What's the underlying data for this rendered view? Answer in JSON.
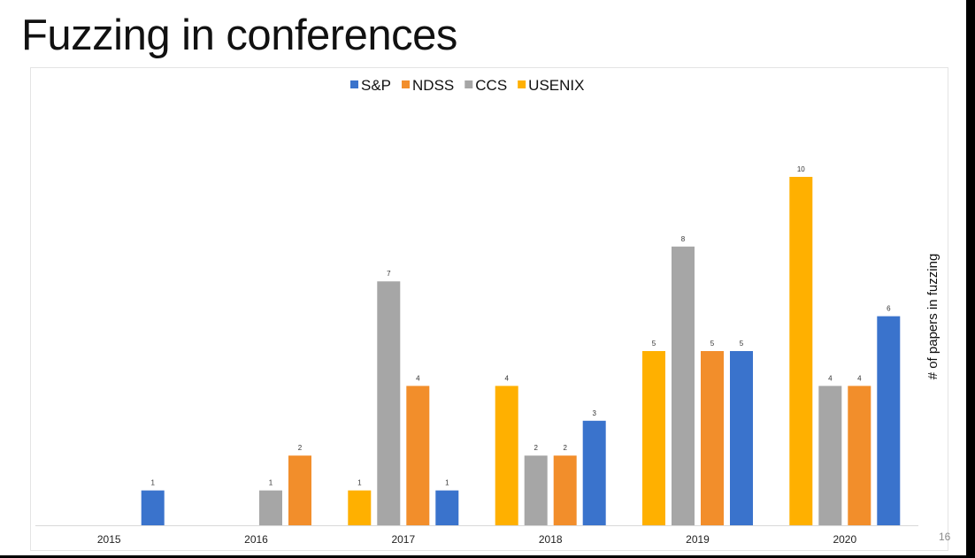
{
  "slide": {
    "title": "Fuzzing in conferences",
    "page_number": "16"
  },
  "chart_data": {
    "type": "bar",
    "title": "",
    "xlabel": "",
    "ylabel": "# of papers in fuzzing",
    "ylim": [
      0,
      10
    ],
    "grid": false,
    "legend_position": "top",
    "legend": [
      {
        "name": "S&P",
        "color": "#3a73cc"
      },
      {
        "name": "NDSS",
        "color": "#f28e2b"
      },
      {
        "name": "CCS",
        "color": "#a6a6a6"
      },
      {
        "name": "USENIX",
        "color": "#ffb000"
      }
    ],
    "categories": [
      "2015",
      "2016",
      "2017",
      "2018",
      "2019",
      "2020"
    ],
    "groups": [
      {
        "category": "2015",
        "bars": [
          {
            "series": "S&P",
            "value": 1,
            "label": "1"
          }
        ]
      },
      {
        "category": "2016",
        "bars": [
          {
            "series": "CCS",
            "value": 1,
            "label": "1"
          },
          {
            "series": "NDSS",
            "value": 2,
            "label": "2"
          }
        ]
      },
      {
        "category": "2017",
        "bars": [
          {
            "series": "USENIX",
            "value": 1,
            "label": "1"
          },
          {
            "series": "CCS",
            "value": 7,
            "label": "7"
          },
          {
            "series": "NDSS",
            "value": 4,
            "label": "4"
          },
          {
            "series": "S&P",
            "value": 1,
            "label": "1"
          }
        ]
      },
      {
        "category": "2018",
        "bars": [
          {
            "series": "USENIX",
            "value": 4,
            "label": "4"
          },
          {
            "series": "CCS",
            "value": 2,
            "label": "2"
          },
          {
            "series": "NDSS",
            "value": 2,
            "label": "2"
          },
          {
            "series": "S&P",
            "value": 3,
            "label": "3"
          }
        ]
      },
      {
        "category": "2019",
        "bars": [
          {
            "series": "USENIX",
            "value": 5,
            "label": "5"
          },
          {
            "series": "CCS",
            "value": 8,
            "label": "8"
          },
          {
            "series": "NDSS",
            "value": 5,
            "label": "5"
          },
          {
            "series": "S&P",
            "value": 5,
            "label": "5"
          }
        ]
      },
      {
        "category": "2020",
        "bars": [
          {
            "series": "USENIX",
            "value": 10,
            "label": "10"
          },
          {
            "series": "CCS",
            "value": 4,
            "label": "4"
          },
          {
            "series": "NDSS",
            "value": 4,
            "label": "4"
          },
          {
            "series": "S&P",
            "value": 6,
            "label": "6"
          }
        ]
      }
    ]
  }
}
